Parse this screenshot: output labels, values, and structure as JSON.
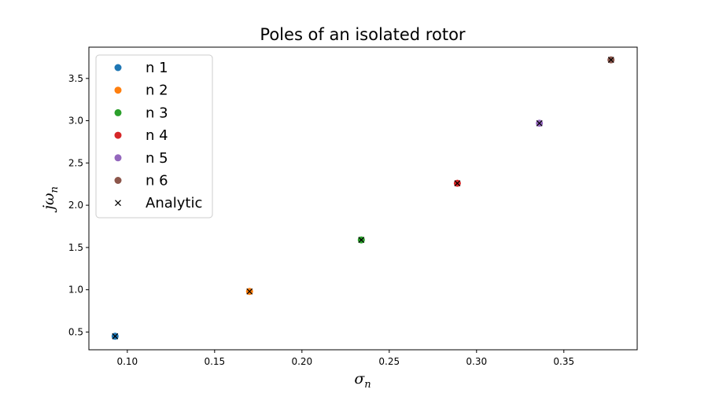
{
  "chart_data": {
    "type": "scatter",
    "title": "Poles of an isolated rotor",
    "xlabel": {
      "main": "σ",
      "sub": "n"
    },
    "ylabel": {
      "main": "jω",
      "sub": "n"
    },
    "xlim": [
      0.078,
      0.392
    ],
    "ylim": [
      0.29,
      3.87
    ],
    "xticks": [
      0.1,
      0.15,
      0.2,
      0.25,
      0.3,
      0.35
    ],
    "xtick_labels": [
      "0.10",
      "0.15",
      "0.20",
      "0.25",
      "0.30",
      "0.35"
    ],
    "yticks": [
      0.5,
      1.0,
      1.5,
      2.0,
      2.5,
      3.0,
      3.5
    ],
    "ytick_labels": [
      "0.5",
      "1.0",
      "1.5",
      "2.0",
      "2.5",
      "3.0",
      "3.5"
    ],
    "grid": false,
    "legend_position": "upper-left",
    "series": [
      {
        "name": "n 1",
        "color": "#1f77b4",
        "marker": "circle",
        "points": [
          {
            "x": 0.093,
            "y": 0.45
          }
        ]
      },
      {
        "name": "n 2",
        "color": "#ff7f0e",
        "marker": "circle",
        "points": [
          {
            "x": 0.17,
            "y": 0.98
          }
        ]
      },
      {
        "name": "n 3",
        "color": "#2ca02c",
        "marker": "circle",
        "points": [
          {
            "x": 0.234,
            "y": 1.59
          }
        ]
      },
      {
        "name": "n 4",
        "color": "#d62728",
        "marker": "circle",
        "points": [
          {
            "x": 0.289,
            "y": 2.26
          }
        ]
      },
      {
        "name": "n 5",
        "color": "#9467bd",
        "marker": "circle",
        "points": [
          {
            "x": 0.336,
            "y": 2.97
          }
        ]
      },
      {
        "name": "n 6",
        "color": "#8c564b",
        "marker": "circle",
        "points": [
          {
            "x": 0.377,
            "y": 3.72
          }
        ]
      },
      {
        "name": "Analytic",
        "color": "#000000",
        "marker": "x",
        "points": [
          {
            "x": 0.093,
            "y": 0.45
          },
          {
            "x": 0.17,
            "y": 0.98
          },
          {
            "x": 0.234,
            "y": 1.59
          },
          {
            "x": 0.289,
            "y": 2.26
          },
          {
            "x": 0.336,
            "y": 2.97
          },
          {
            "x": 0.377,
            "y": 3.72
          }
        ]
      }
    ]
  }
}
